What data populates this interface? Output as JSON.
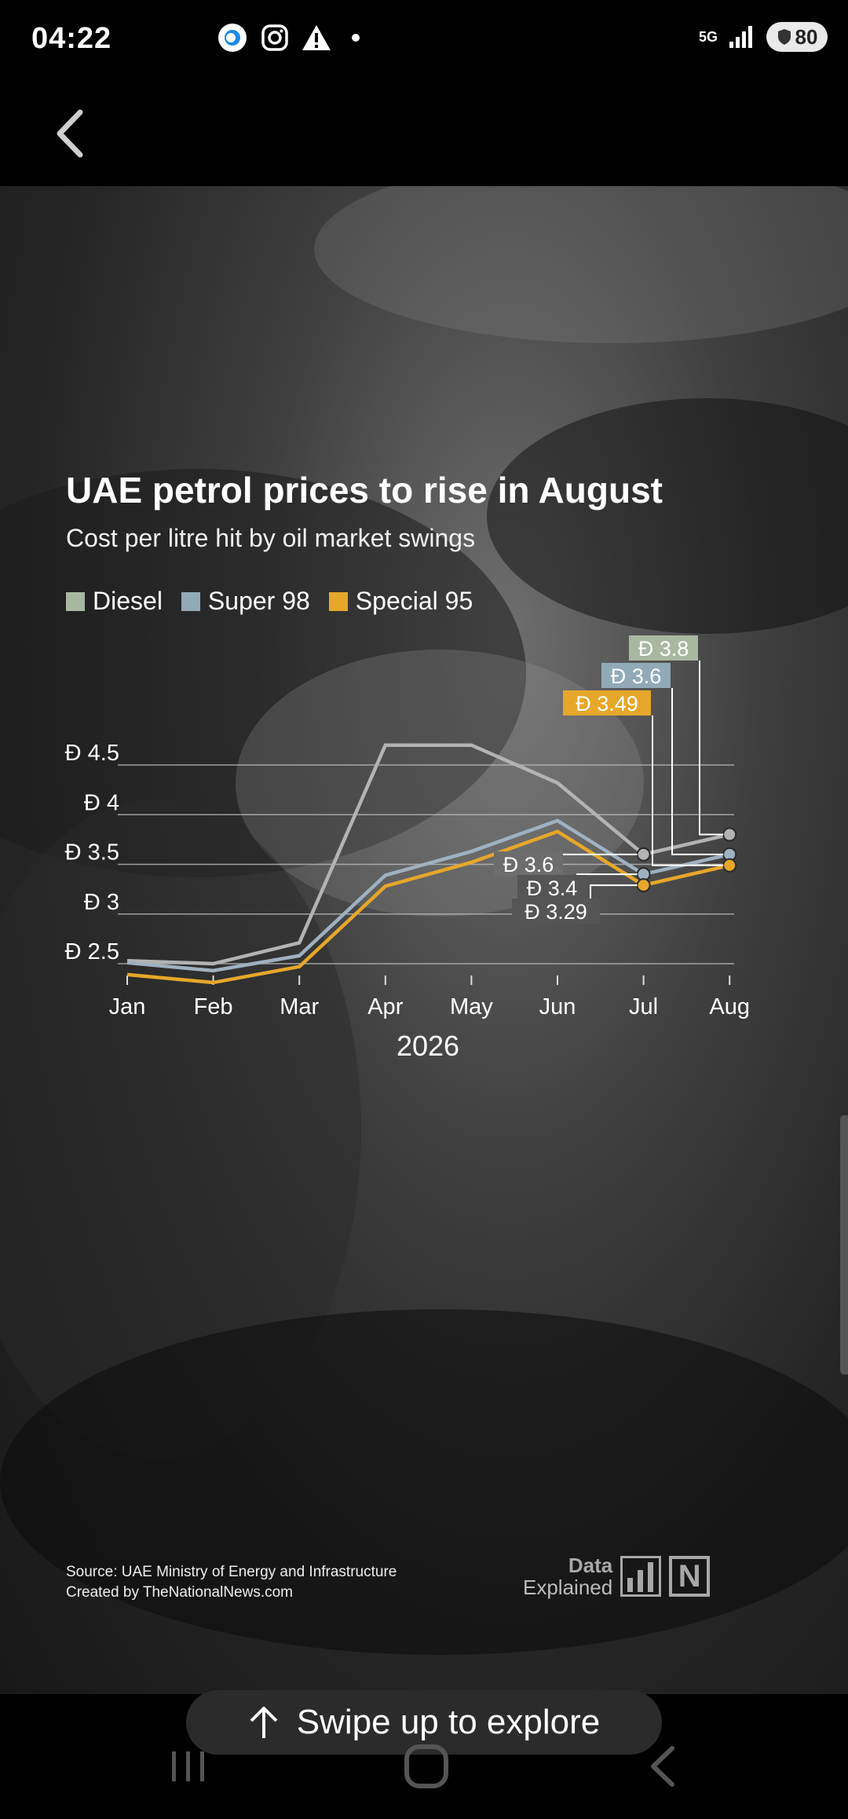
{
  "status": {
    "time": "04:22",
    "network_label": "5G",
    "battery": "80",
    "icons": [
      "assistant-icon",
      "instagram-icon",
      "warning-icon",
      "notification-dot-icon",
      "signal-icon",
      "shield-icon"
    ]
  },
  "story": {
    "title": "UAE petrol prices to rise in August",
    "subtitle": "Cost per litre hit by oil market swings",
    "source_line1": "Source: UAE Ministry of Energy and Infrastructure",
    "source_line2": "Created by TheNationalNews.com",
    "brand_line1": "Data",
    "brand_line2": "Explained",
    "brand_mark": "N"
  },
  "swipe": {
    "label": "Swipe up to explore"
  },
  "chart_data": {
    "type": "line",
    "title": "UAE petrol prices to rise in August",
    "subtitle": "Cost per litre hit by oil market swings",
    "xlabel": "2026",
    "categories": [
      "Jan",
      "Feb",
      "Mar",
      "Apr",
      "May",
      "Jun",
      "Jul",
      "Aug"
    ],
    "ylim": [
      2.2,
      4.7
    ],
    "yticks": [
      2.5,
      3,
      3.5,
      4,
      4.5
    ],
    "ytick_labels": [
      "Đ 2.5",
      "Đ 3",
      "Đ 3.5",
      "Đ 4",
      "Đ 4.5"
    ],
    "grid": true,
    "legend_position": "top-left",
    "series": [
      {
        "name": "Diesel",
        "color": "#a8b8a0",
        "line_color": "#b3b3b3",
        "values": [
          2.53,
          2.5,
          2.71,
          4.7,
          4.7,
          4.32,
          3.6,
          3.8
        ]
      },
      {
        "name": "Super 98",
        "color": "#92a9b8",
        "line_color": "#9fb1c1",
        "values": [
          2.51,
          2.43,
          2.58,
          3.39,
          3.63,
          3.94,
          3.4,
          3.6
        ]
      },
      {
        "name": "Special 95",
        "color": "#e6a72a",
        "line_color": "#e6a72a",
        "values": [
          2.39,
          2.31,
          2.47,
          3.28,
          3.52,
          3.83,
          3.29,
          3.49
        ]
      }
    ],
    "annotations": [
      {
        "series": "Diesel",
        "month": "Aug",
        "label": "Đ 3.8"
      },
      {
        "series": "Super 98",
        "month": "Aug",
        "label": "Đ 3.6"
      },
      {
        "series": "Special 95",
        "month": "Aug",
        "label": "Đ 3.49"
      },
      {
        "series": "Diesel",
        "month": "Jul",
        "label": "Đ 3.6"
      },
      {
        "series": "Super 98",
        "month": "Jul",
        "label": "Đ 3.4"
      },
      {
        "series": "Special 95",
        "month": "Jul",
        "label": "Đ 3.29"
      }
    ]
  }
}
